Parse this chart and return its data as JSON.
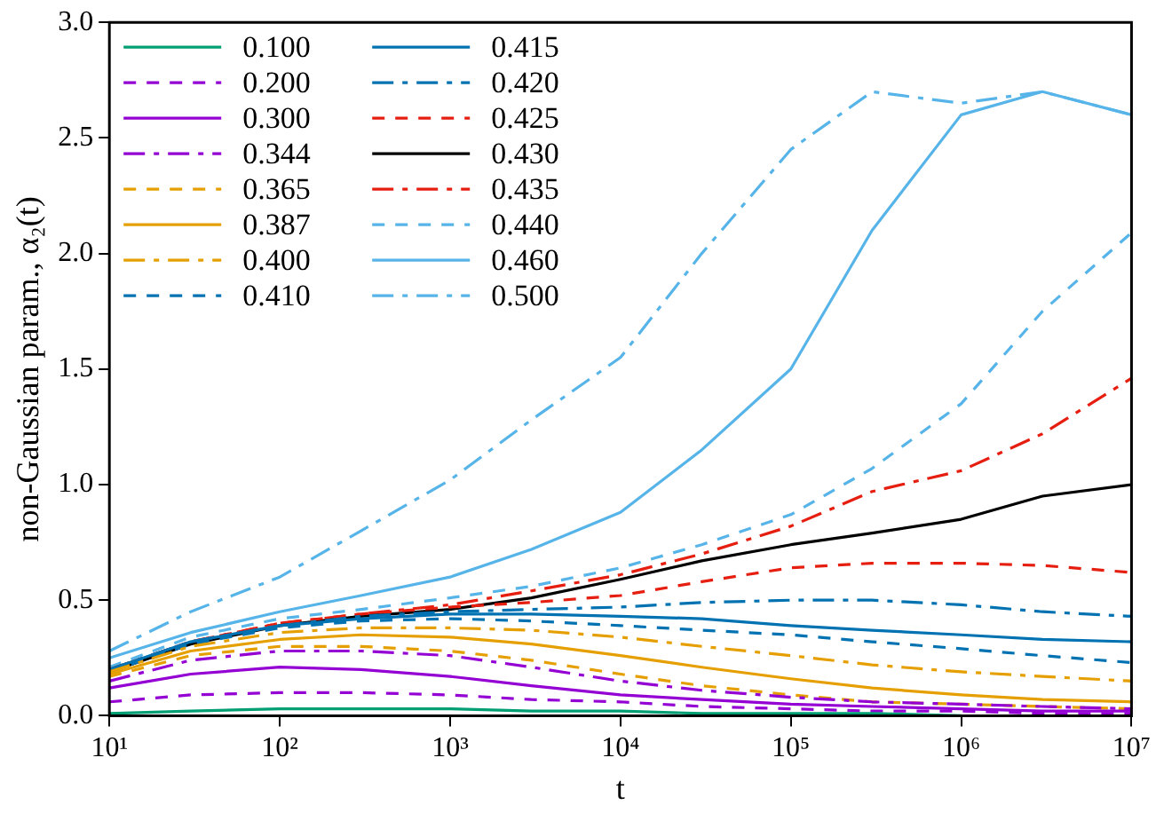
{
  "chart_data": {
    "type": "line",
    "xlabel": "t",
    "ylabel": "non-Gaussian param., α₂(t)",
    "log": "x",
    "grid": false,
    "legend": "top left",
    "marker": "none",
    "x": [
      10,
      30,
      100,
      300,
      1000,
      3000,
      10000,
      30000,
      100000,
      300000,
      1000000,
      3000000,
      10000000
    ],
    "xlim": [
      10,
      10000000
    ],
    "xticks": [
      {
        "value": 10,
        "label": "10¹"
      },
      {
        "value": 100,
        "label": "10²"
      },
      {
        "value": 1000,
        "label": "10³"
      },
      {
        "value": 10000,
        "label": "10⁴"
      },
      {
        "value": 100000,
        "label": "10⁵"
      },
      {
        "value": 1000000,
        "label": "10⁶"
      },
      {
        "value": 10000000,
        "label": "10⁷"
      }
    ],
    "ylim": [
      0,
      3
    ],
    "yticks": [
      {
        "value": 0,
        "label": "0.0"
      },
      {
        "value": 0.5,
        "label": "0.5"
      },
      {
        "value": 1,
        "label": "1.0"
      },
      {
        "value": 1.5,
        "label": "1.5"
      },
      {
        "value": 2,
        "label": "2.0"
      },
      {
        "value": 2.5,
        "label": "2.5"
      },
      {
        "value": 3,
        "label": "3.0"
      }
    ],
    "series": [
      {
        "name": "0.100",
        "color": "#009e73",
        "line_style": "solid",
        "values": [
          0.01,
          0.02,
          0.03,
          0.03,
          0.03,
          0.02,
          0.02,
          0.01,
          0.01,
          0.01,
          0.0,
          null,
          null
        ]
      },
      {
        "name": "0.200",
        "color": "#9400d3",
        "line_style": "dashed",
        "values": [
          0.06,
          0.09,
          0.1,
          0.1,
          0.09,
          0.07,
          0.06,
          0.04,
          0.03,
          0.02,
          0.02,
          0.01,
          0.01
        ]
      },
      {
        "name": "0.300",
        "color": "#9400d3",
        "line_style": "solid",
        "values": [
          0.12,
          0.18,
          0.21,
          0.2,
          0.17,
          0.13,
          0.09,
          0.07,
          0.05,
          0.04,
          0.03,
          0.02,
          0.02
        ]
      },
      {
        "name": "0.344",
        "color": "#9400d3",
        "line_style": "dashdot",
        "values": [
          0.15,
          0.24,
          0.28,
          0.28,
          0.26,
          0.21,
          0.15,
          0.11,
          0.08,
          0.06,
          0.05,
          0.04,
          0.03
        ]
      },
      {
        "name": "0.365",
        "color": "#e69f00",
        "line_style": "dashed",
        "values": [
          0.17,
          0.26,
          0.3,
          0.3,
          0.28,
          0.24,
          0.18,
          0.13,
          0.09,
          0.06,
          0.05,
          0.04,
          0.03
        ]
      },
      {
        "name": "0.387",
        "color": "#e69f00",
        "line_style": "solid",
        "values": [
          0.18,
          0.28,
          0.33,
          0.35,
          0.34,
          0.31,
          0.26,
          0.21,
          0.16,
          0.12,
          0.09,
          0.07,
          0.06
        ]
      },
      {
        "name": "0.400",
        "color": "#e69f00",
        "line_style": "dashdot",
        "values": [
          0.19,
          0.3,
          0.36,
          0.38,
          0.38,
          0.37,
          0.34,
          0.3,
          0.26,
          0.22,
          0.19,
          0.17,
          0.15
        ]
      },
      {
        "name": "0.410",
        "color": "#0072b2",
        "line_style": "dashed",
        "values": [
          0.19,
          0.31,
          0.38,
          0.41,
          0.42,
          0.41,
          0.39,
          0.37,
          0.35,
          0.32,
          0.29,
          0.26,
          0.23
        ]
      },
      {
        "name": "0.415",
        "color": "#0072b2",
        "line_style": "solid",
        "values": [
          0.2,
          0.32,
          0.39,
          0.42,
          0.44,
          0.44,
          0.43,
          0.42,
          0.39,
          0.37,
          0.35,
          0.33,
          0.32
        ]
      },
      {
        "name": "0.420",
        "color": "#0072b2",
        "line_style": "dashdot",
        "values": [
          0.2,
          0.32,
          0.39,
          0.43,
          0.45,
          0.46,
          0.47,
          0.49,
          0.5,
          0.5,
          0.48,
          0.45,
          0.43
        ]
      },
      {
        "name": "0.425",
        "color": "#e51e10",
        "line_style": "dashed",
        "values": [
          0.2,
          0.32,
          0.4,
          0.44,
          0.47,
          0.49,
          0.52,
          0.58,
          0.64,
          0.66,
          0.66,
          0.65,
          0.62
        ]
      },
      {
        "name": "0.430",
        "color": "#000000",
        "line_style": "solid",
        "values": [
          0.19,
          0.31,
          0.39,
          0.43,
          0.46,
          0.51,
          0.59,
          0.67,
          0.74,
          0.79,
          0.85,
          0.95,
          1.0
        ]
      },
      {
        "name": "0.435",
        "color": "#e51e10",
        "line_style": "dashdot",
        "values": [
          0.2,
          0.32,
          0.4,
          0.44,
          0.48,
          0.54,
          0.61,
          0.7,
          0.82,
          0.97,
          1.06,
          1.22,
          1.46
        ]
      },
      {
        "name": "0.440",
        "color": "#56b4e9",
        "line_style": "dashed",
        "values": [
          0.21,
          0.34,
          0.42,
          0.46,
          0.51,
          0.56,
          0.64,
          0.74,
          0.87,
          1.07,
          1.35,
          1.75,
          2.09
        ]
      },
      {
        "name": "0.460",
        "color": "#56b4e9",
        "line_style": "solid",
        "values": [
          0.25,
          0.36,
          0.45,
          0.52,
          0.6,
          0.72,
          0.88,
          1.15,
          1.5,
          2.1,
          2.6,
          2.7,
          2.6
        ]
      },
      {
        "name": "0.500",
        "color": "#56b4e9",
        "line_style": "dashdot",
        "values": [
          0.28,
          0.45,
          0.6,
          0.8,
          1.02,
          1.28,
          1.55,
          2.0,
          2.45,
          2.7,
          2.65,
          2.7,
          2.6
        ]
      }
    ]
  }
}
